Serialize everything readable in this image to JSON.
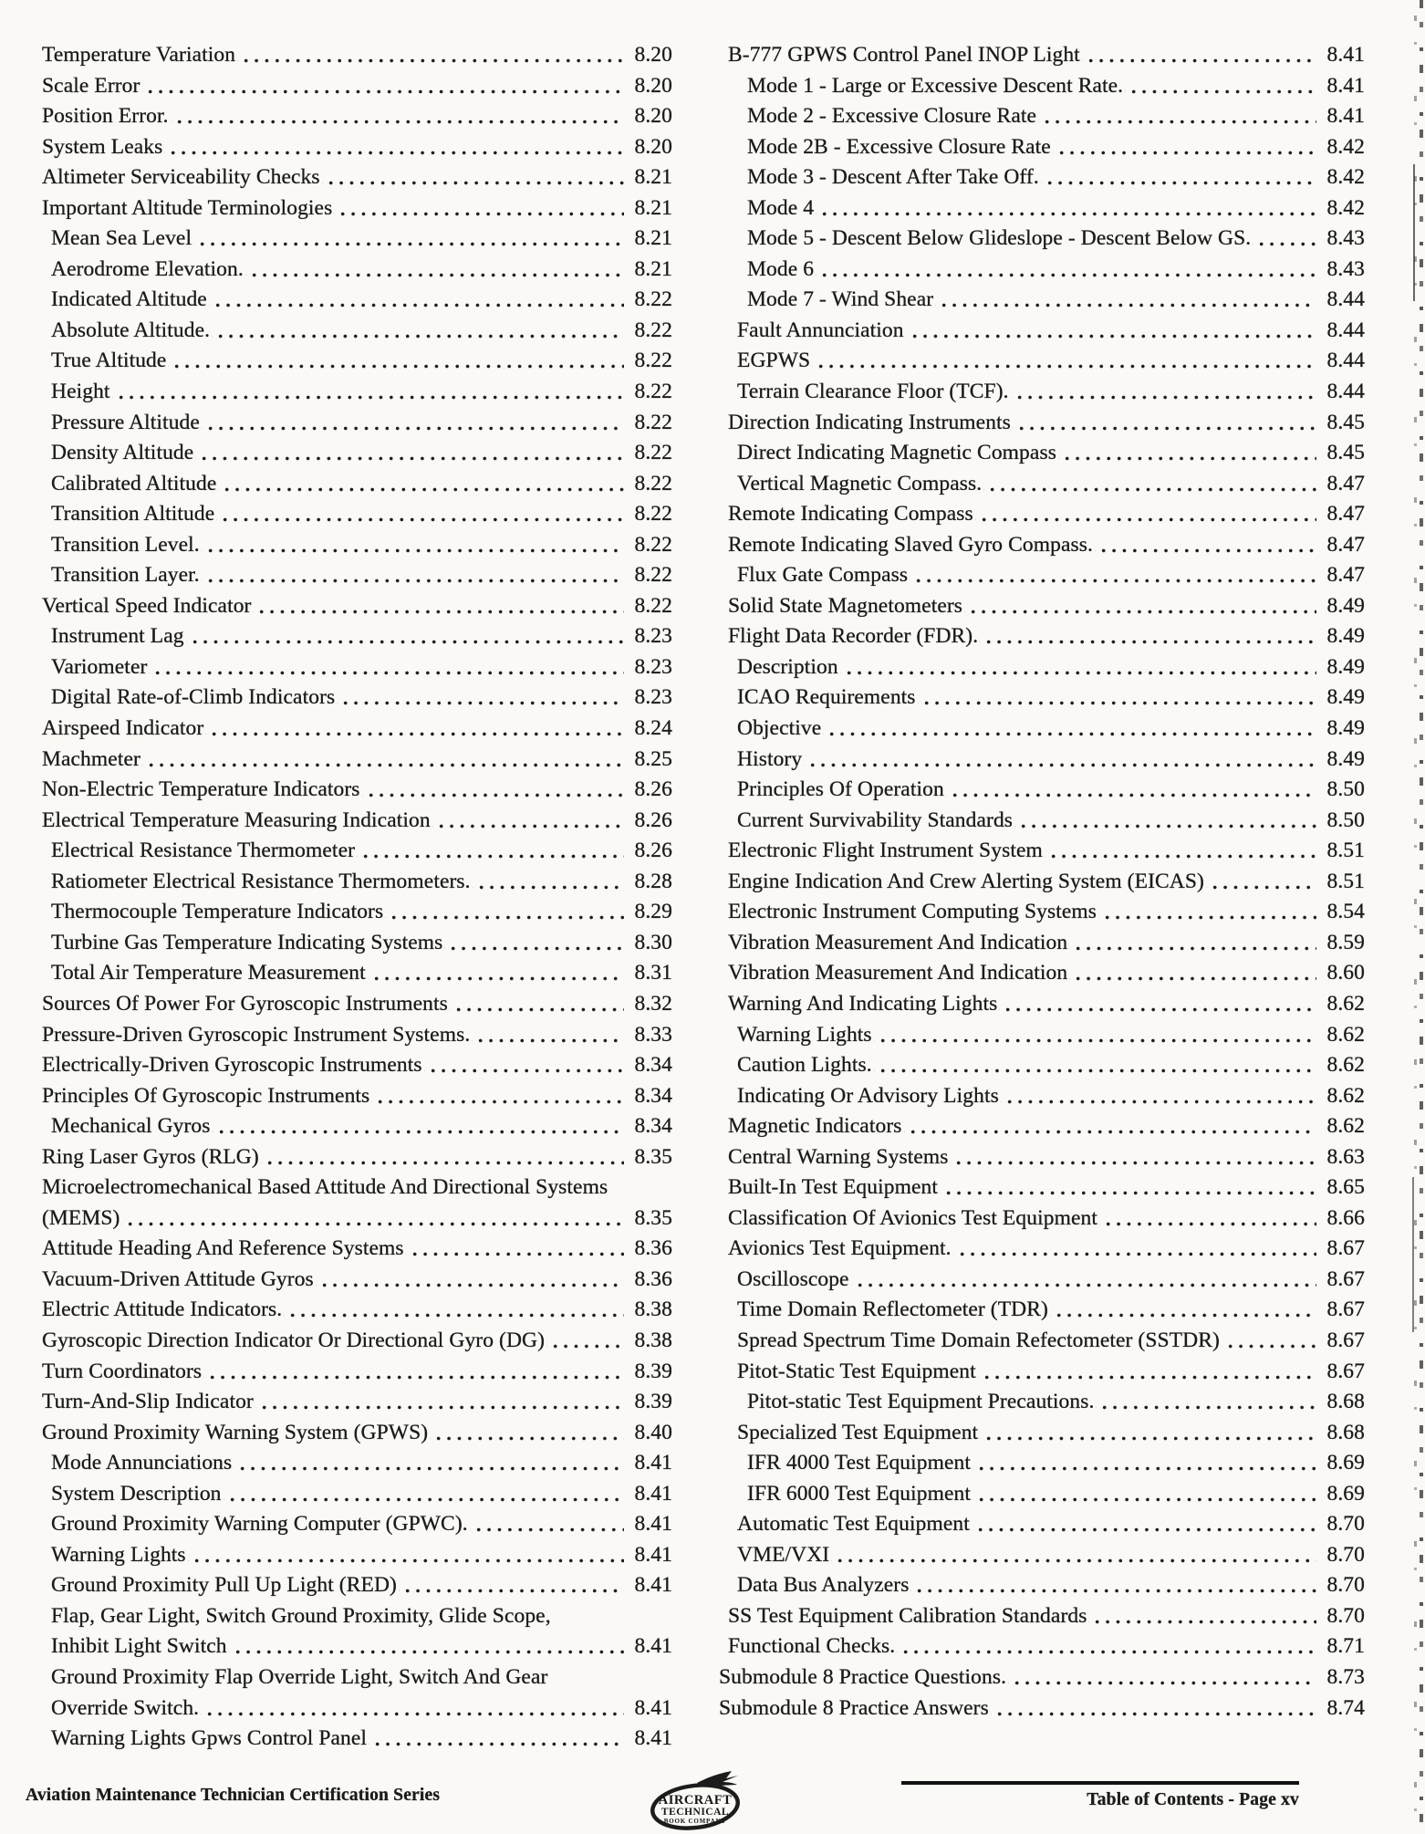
{
  "page": {
    "footer_left": "Aviation Maintenance Technician Certification Series",
    "footer_right": "Table of Contents - Page xv",
    "ink_color": "#1b1b1b",
    "paper_color": "#faf9f5",
    "logo": {
      "line1": "AIRCRAFT",
      "line2": "TECHNICAL",
      "line3": "BOOK COMPANY",
      "icon": "airplane-icon"
    }
  },
  "toc": {
    "left": [
      {
        "t": "Temperature Variation",
        "p": "8.20",
        "lvl": 1
      },
      {
        "t": "Scale Error",
        "p": "8.20",
        "lvl": 1
      },
      {
        "t": "Position Error.",
        "p": "8.20",
        "lvl": 1
      },
      {
        "t": "System Leaks",
        "p": "8.20",
        "lvl": 1
      },
      {
        "t": "Altimeter Serviceability Checks",
        "p": "8.21",
        "lvl": 1
      },
      {
        "t": "Important Altitude Terminologies",
        "p": "8.21",
        "lvl": 1
      },
      {
        "t": "Mean Sea Level",
        "p": "8.21",
        "lvl": 2
      },
      {
        "t": "Aerodrome Elevation.",
        "p": "8.21",
        "lvl": 2
      },
      {
        "t": "Indicated Altitude",
        "p": "8.22",
        "lvl": 2
      },
      {
        "t": "Absolute Altitude.",
        "p": "8.22",
        "lvl": 2
      },
      {
        "t": "True Altitude",
        "p": "8.22",
        "lvl": 2
      },
      {
        "t": "Height",
        "p": "8.22",
        "lvl": 2
      },
      {
        "t": "Pressure Altitude",
        "p": "8.22",
        "lvl": 2
      },
      {
        "t": "Density Altitude",
        "p": "8.22",
        "lvl": 2
      },
      {
        "t": "Calibrated Altitude",
        "p": "8.22",
        "lvl": 2
      },
      {
        "t": "Transition Altitude",
        "p": "8.22",
        "lvl": 2
      },
      {
        "t": "Transition Level.",
        "p": "8.22",
        "lvl": 2
      },
      {
        "t": "Transition Layer.",
        "p": "8.22",
        "lvl": 2
      },
      {
        "t": "Vertical Speed Indicator",
        "p": "8.22",
        "lvl": 1
      },
      {
        "t": "Instrument Lag",
        "p": "8.23",
        "lvl": 2
      },
      {
        "t": "Variometer",
        "p": "8.23",
        "lvl": 2
      },
      {
        "t": "Digital Rate-of-Climb Indicators",
        "p": "8.23",
        "lvl": 2
      },
      {
        "t": "Airspeed Indicator",
        "p": "8.24",
        "lvl": 1
      },
      {
        "t": "Machmeter",
        "p": "8.25",
        "lvl": 1
      },
      {
        "t": "Non-Electric Temperature Indicators",
        "p": "8.26",
        "lvl": 1
      },
      {
        "t": "Electrical Temperature Measuring Indication",
        "p": "8.26",
        "lvl": 1
      },
      {
        "t": "Electrical Resistance Thermometer",
        "p": "8.26",
        "lvl": 2
      },
      {
        "t": "Ratiometer Electrical Resistance Thermometers.",
        "p": "8.28",
        "lvl": 2
      },
      {
        "t": "Thermocouple Temperature Indicators",
        "p": "8.29",
        "lvl": 2
      },
      {
        "t": "Turbine Gas Temperature Indicating Systems",
        "p": "8.30",
        "lvl": 2
      },
      {
        "t": "Total Air Temperature Measurement",
        "p": "8.31",
        "lvl": 2
      },
      {
        "t": "Sources Of Power For Gyroscopic Instruments",
        "p": "8.32",
        "lvl": 1
      },
      {
        "t": "Pressure-Driven Gyroscopic Instrument Systems.",
        "p": "8.33",
        "lvl": 1
      },
      {
        "t": "Electrically-Driven Gyroscopic Instruments",
        "p": "8.34",
        "lvl": 1
      },
      {
        "t": "Principles Of Gyroscopic Instruments",
        "p": "8.34",
        "lvl": 1
      },
      {
        "t": "Mechanical Gyros",
        "p": "8.34",
        "lvl": 2
      },
      {
        "t": "Ring Laser Gyros (RLG)",
        "p": "8.35",
        "lvl": 1
      },
      {
        "t": "Microelectromechanical Based Attitude And Directional Systems",
        "p": "",
        "lvl": 1
      },
      {
        "t": "(MEMS)",
        "p": "8.35",
        "lvl": 1
      },
      {
        "t": "Attitude Heading And Reference Systems",
        "p": "8.36",
        "lvl": 1
      },
      {
        "t": "Vacuum-Driven Attitude Gyros",
        "p": "8.36",
        "lvl": 1
      },
      {
        "t": "Electric Attitude Indicators.",
        "p": "8.38",
        "lvl": 1
      },
      {
        "t": "Gyroscopic Direction Indicator Or Directional Gyro (DG)",
        "p": "8.38",
        "lvl": 1
      },
      {
        "t": "Turn Coordinators",
        "p": "8.39",
        "lvl": 1
      },
      {
        "t": "Turn-And-Slip Indicator",
        "p": "8.39",
        "lvl": 1
      },
      {
        "t": "Ground Proximity Warning System (GPWS)",
        "p": "8.40",
        "lvl": 1
      },
      {
        "t": "Mode Annunciations",
        "p": "8.41",
        "lvl": 2
      },
      {
        "t": "System Description",
        "p": "8.41",
        "lvl": 2
      },
      {
        "t": "Ground Proximity Warning Computer (GPWC).",
        "p": "8.41",
        "lvl": 2
      },
      {
        "t": "Warning Lights",
        "p": "8.41",
        "lvl": 2
      },
      {
        "t": "Ground Proximity Pull Up Light (RED)",
        "p": "8.41",
        "lvl": 2
      },
      {
        "t": "Flap, Gear Light, Switch Ground Proximity, Glide Scope,",
        "p": "",
        "lvl": 2
      },
      {
        "t": "Inhibit Light Switch",
        "p": "8.41",
        "lvl": 2
      },
      {
        "t": "Ground Proximity Flap Override Light, Switch And Gear",
        "p": "",
        "lvl": 2
      },
      {
        "t": "Override Switch.",
        "p": "8.41",
        "lvl": 2
      },
      {
        "t": "Warning Lights Gpws Control Panel",
        "p": "8.41",
        "lvl": 2
      }
    ],
    "right": [
      {
        "t": "B-777 GPWS Control Panel INOP Light",
        "p": "8.41",
        "lvl": 1
      },
      {
        "t": "Mode 1 - Large or Excessive Descent Rate.",
        "p": "8.41",
        "lvl": 3
      },
      {
        "t": "Mode 2 - Excessive Closure Rate",
        "p": "8.41",
        "lvl": 3
      },
      {
        "t": "Mode 2B - Excessive Closure Rate",
        "p": "8.42",
        "lvl": 3
      },
      {
        "t": "Mode 3 - Descent After Take Off.",
        "p": "8.42",
        "lvl": 3
      },
      {
        "t": "Mode 4",
        "p": "8.42",
        "lvl": 3
      },
      {
        "t": "Mode 5 - Descent Below Glideslope - Descent Below GS.",
        "p": "8.43",
        "lvl": 3
      },
      {
        "t": "Mode 6",
        "p": "8.43",
        "lvl": 3
      },
      {
        "t": "Mode 7 - Wind Shear",
        "p": "8.44",
        "lvl": 3
      },
      {
        "t": "Fault Annunciation",
        "p": "8.44",
        "lvl": 2
      },
      {
        "t": "EGPWS",
        "p": "8.44",
        "lvl": 2
      },
      {
        "t": "Terrain Clearance Floor (TCF).",
        "p": "8.44",
        "lvl": 2
      },
      {
        "t": "Direction Indicating Instruments",
        "p": "8.45",
        "lvl": 1
      },
      {
        "t": "Direct Indicating Magnetic Compass",
        "p": "8.45",
        "lvl": 2
      },
      {
        "t": "Vertical Magnetic Compass.",
        "p": "8.47",
        "lvl": 2
      },
      {
        "t": "Remote Indicating Compass",
        "p": "8.47",
        "lvl": 1
      },
      {
        "t": "Remote Indicating Slaved Gyro Compass.",
        "p": "8.47",
        "lvl": 1
      },
      {
        "t": "Flux Gate Compass",
        "p": "8.47",
        "lvl": 2
      },
      {
        "t": "Solid State Magnetometers",
        "p": "8.49",
        "lvl": 1
      },
      {
        "t": "Flight Data Recorder (FDR).",
        "p": "8.49",
        "lvl": 1
      },
      {
        "t": "Description",
        "p": "8.49",
        "lvl": 2
      },
      {
        "t": "ICAO Requirements",
        "p": "8.49",
        "lvl": 2
      },
      {
        "t": "Objective",
        "p": "8.49",
        "lvl": 2
      },
      {
        "t": "History",
        "p": "8.49",
        "lvl": 2
      },
      {
        "t": "Principles Of Operation",
        "p": "8.50",
        "lvl": 2
      },
      {
        "t": "Current Survivability Standards",
        "p": "8.50",
        "lvl": 2
      },
      {
        "t": "Electronic Flight Instrument System",
        "p": "8.51",
        "lvl": 1
      },
      {
        "t": "Engine Indication And Crew Alerting System (EICAS)",
        "p": "8.51",
        "lvl": 1
      },
      {
        "t": "Electronic Instrument Computing Systems",
        "p": "8.54",
        "lvl": 1
      },
      {
        "t": "Vibration Measurement And Indication",
        "p": "8.59",
        "lvl": 1
      },
      {
        "t": "Vibration Measurement And Indication",
        "p": "8.60",
        "lvl": 1
      },
      {
        "t": "Warning And Indicating Lights",
        "p": "8.62",
        "lvl": 1
      },
      {
        "t": "Warning Lights",
        "p": "8.62",
        "lvl": 2
      },
      {
        "t": "Caution Lights.",
        "p": "8.62",
        "lvl": 2
      },
      {
        "t": "Indicating Or Advisory Lights",
        "p": "8.62",
        "lvl": 2
      },
      {
        "t": "Magnetic Indicators",
        "p": "8.62",
        "lvl": 1
      },
      {
        "t": "Central Warning Systems",
        "p": "8.63",
        "lvl": 1
      },
      {
        "t": "Built-In Test Equipment",
        "p": "8.65",
        "lvl": 1
      },
      {
        "t": "Classification Of Avionics Test Equipment",
        "p": "8.66",
        "lvl": 1
      },
      {
        "t": "Avionics Test Equipment.",
        "p": "8.67",
        "lvl": 1
      },
      {
        "t": "Oscilloscope",
        "p": "8.67",
        "lvl": 2
      },
      {
        "t": "Time Domain Reflectometer (TDR)",
        "p": "8.67",
        "lvl": 2
      },
      {
        "t": "Spread Spectrum Time Domain Refectometer (SSTDR)",
        "p": "8.67",
        "lvl": 2
      },
      {
        "t": "Pitot-Static Test Equipment",
        "p": "8.67",
        "lvl": 2
      },
      {
        "t": "Pitot-static Test Equipment Precautions.",
        "p": "8.68",
        "lvl": 3
      },
      {
        "t": "Specialized Test Equipment",
        "p": "8.68",
        "lvl": 2
      },
      {
        "t": "IFR 4000 Test Equipment",
        "p": "8.69",
        "lvl": 3
      },
      {
        "t": "IFR 6000 Test Equipment",
        "p": "8.69",
        "lvl": 3
      },
      {
        "t": "Automatic Test Equipment",
        "p": "8.70",
        "lvl": 2
      },
      {
        "t": "VME/VXI",
        "p": "8.70",
        "lvl": 2
      },
      {
        "t": "Data Bus Analyzers",
        "p": "8.70",
        "lvl": 2
      },
      {
        "t": "SS Test Equipment Calibration Standards",
        "p": "8.70",
        "lvl": 1
      },
      {
        "t": "Functional Checks.",
        "p": "8.71",
        "lvl": 1
      },
      {
        "t": "Submodule 8 Practice Questions.",
        "p": "8.73",
        "lvl": 0
      },
      {
        "t": "Submodule 8 Practice Answers",
        "p": "8.74",
        "lvl": 0
      }
    ]
  }
}
